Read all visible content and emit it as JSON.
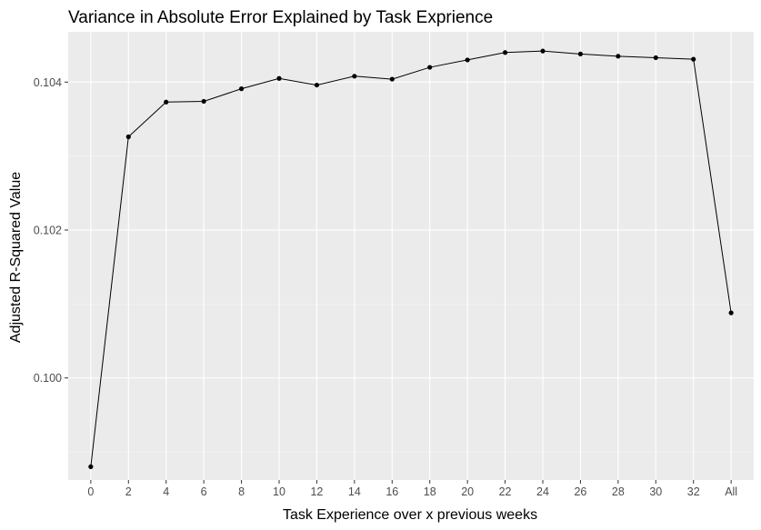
{
  "chart_data": {
    "type": "line",
    "title": "Variance in Absolute Error Explained by Task Exprience",
    "xlabel": "Task Experience over x previous weeks",
    "ylabel": "Adjusted R-Squared Value",
    "categories": [
      "0",
      "2",
      "4",
      "6",
      "8",
      "10",
      "12",
      "14",
      "16",
      "18",
      "20",
      "22",
      "24",
      "26",
      "28",
      "30",
      "32",
      "All"
    ],
    "series": [
      {
        "values": [
          0.0988,
          0.10326,
          0.10373,
          0.10374,
          0.10391,
          0.10405,
          0.10396,
          0.10408,
          0.10404,
          0.1042,
          0.1043,
          0.1044,
          0.10442,
          0.10438,
          0.10435,
          0.10433,
          0.10431,
          0.10088
        ]
      }
    ],
    "ylim": [
      0.09862,
      0.10468
    ],
    "yticks": [
      {
        "value": 0.1,
        "label": "0.100"
      },
      {
        "value": 0.102,
        "label": "0.102"
      },
      {
        "value": 0.104,
        "label": "0.104"
      }
    ],
    "grid": true,
    "colors": {
      "panel": "#ebebeb",
      "grid_major": "#ffffff",
      "grid_minor": "#f5f5f5",
      "line": "#000000",
      "point": "#000000",
      "tick": "#333333"
    }
  }
}
